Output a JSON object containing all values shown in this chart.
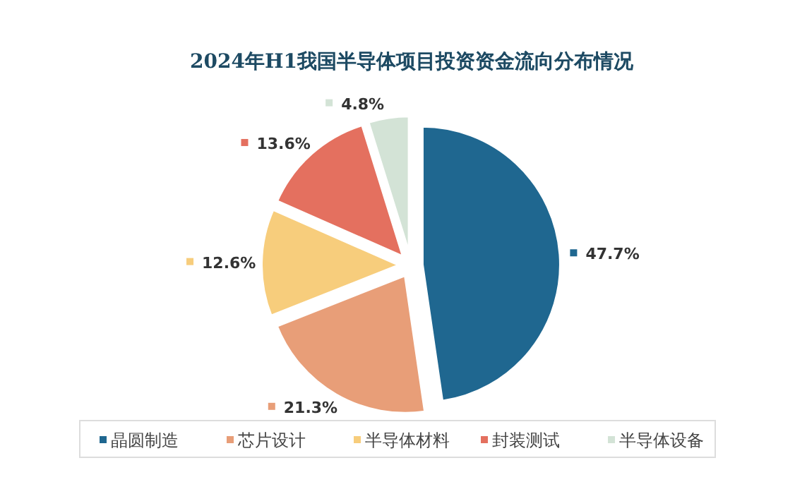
{
  "chart_data": {
    "type": "pie",
    "title": "2024年H1我国半导体项目投资资金流向分布情况",
    "categories": [
      "晶圆制造",
      "芯片设计",
      "半导体材料",
      "封装测试",
      "半导体设备"
    ],
    "values": [
      47.7,
      21.3,
      12.6,
      13.6,
      4.8
    ],
    "colors": [
      "#1f6790",
      "#e89e78",
      "#f7cd7c",
      "#e4705f",
      "#d3e3d6"
    ],
    "value_labels": [
      "47.7%",
      "21.3%",
      "12.6%",
      "13.6%",
      "4.8%"
    ],
    "legend": "bottom"
  }
}
